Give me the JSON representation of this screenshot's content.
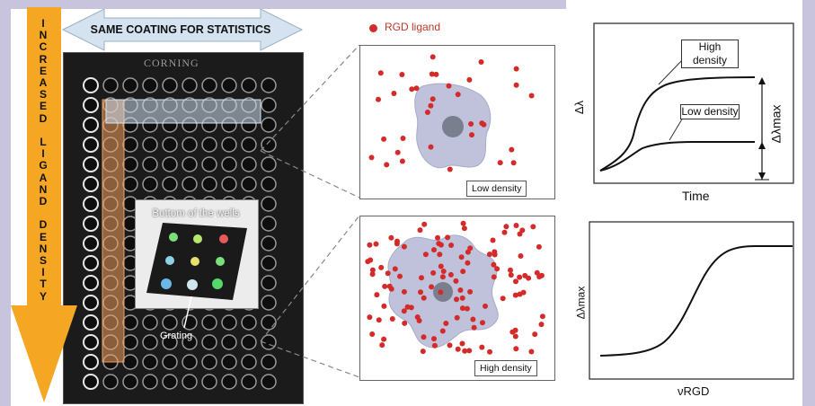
{
  "vertical_text": "INCREASED LIGAND DENSITY",
  "top_arrow_label": "SAME COATING FOR STATISTICS",
  "plate_brand": "CORNING",
  "inset": {
    "title": "Bottom of the wells",
    "grating_label": "Grating"
  },
  "legend": {
    "label": "RGD ligand",
    "color": "#d42a2a"
  },
  "panels": {
    "low_label": "Low density",
    "high_label": "High density"
  },
  "graph_top": {
    "y_axis": "Δλ",
    "x_axis": "Time",
    "high_label": "High density",
    "low_label": "Low density",
    "bracket_label": "Δλmax"
  },
  "graph_bottom": {
    "y_axis": "Δλmax",
    "x_axis": "νRGD"
  },
  "colors": {
    "arrow_orange": "#f5a623",
    "frame": "#c9c4de",
    "cell": "#b9bdd8",
    "nucleus": "#7a7f90",
    "highlight": "#f0a060"
  }
}
